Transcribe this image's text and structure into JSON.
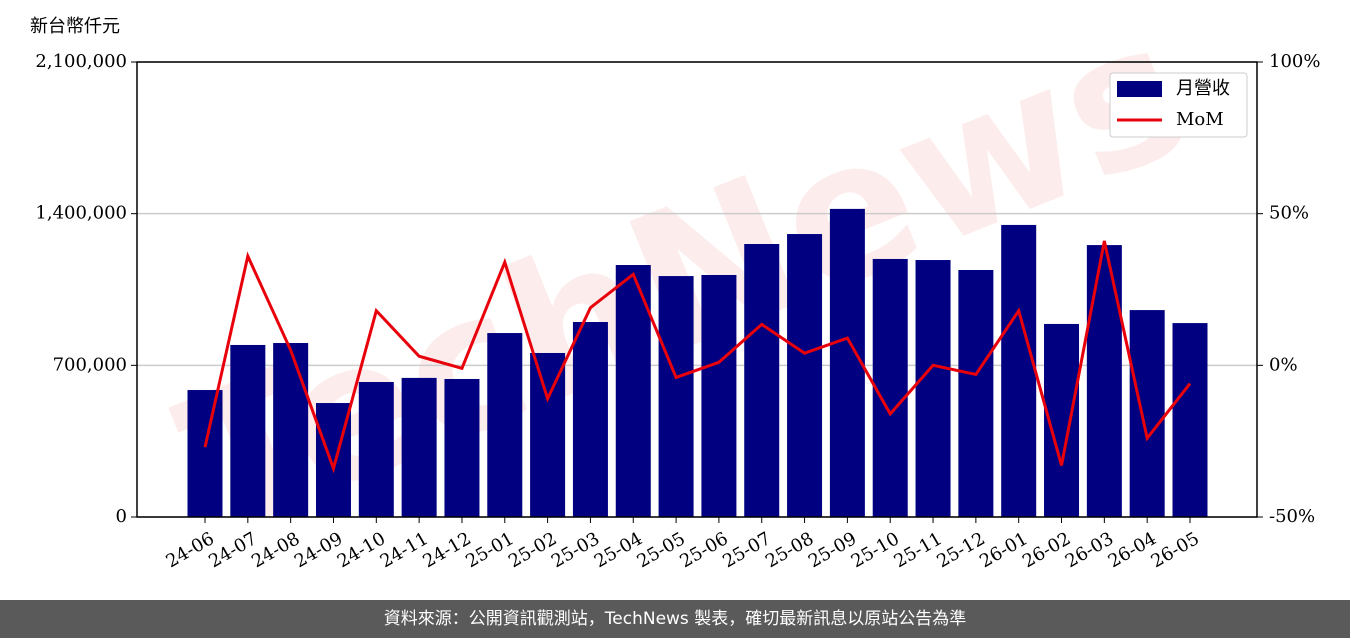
{
  "chart_data": {
    "type": "bar-line",
    "y_label": "新台幣仟元",
    "watermark": "TechNews",
    "categories": [
      "24-06",
      "24-07",
      "24-08",
      "24-09",
      "24-10",
      "24-11",
      "24-12",
      "25-01",
      "25-02",
      "25-03",
      "25-04",
      "25-05",
      "25-06",
      "25-07",
      "25-08",
      "25-09",
      "25-10",
      "25-11",
      "25-12",
      "26-01",
      "26-02",
      "26-03",
      "26-04",
      "26-05"
    ],
    "series": [
      {
        "name": "月營收",
        "color": "#000080",
        "values": [
          586000,
          794000,
          803000,
          526000,
          623000,
          642000,
          637000,
          849000,
          757000,
          900000,
          1163000,
          1112000,
          1117000,
          1260000,
          1306000,
          1422000,
          1191000,
          1186000,
          1140000,
          1348000,
          891000,
          1255000,
          955000,
          895000
        ]
      },
      {
        "name": "MoM",
        "color": "#e8000b",
        "axis": "y2",
        "values": [
          -27,
          36,
          5,
          -34,
          18,
          3,
          -1,
          34,
          -11,
          19,
          30,
          -4,
          1,
          13.5,
          4,
          9,
          -16,
          0,
          -3,
          18,
          -33,
          41,
          -24,
          -6
        ]
      }
    ],
    "ylim": [
      0,
      2100000
    ],
    "yticks": [
      {
        "value": 0,
        "label": "0"
      },
      {
        "value": 700000,
        "label": "700,000"
      },
      {
        "value": 1400000,
        "label": "1,400,000"
      },
      {
        "value": 2100000,
        "label": "2,100,000"
      }
    ],
    "y2lim": [
      -50,
      100
    ],
    "y2ticks": [
      {
        "value": -50,
        "label": "-50%"
      },
      {
        "value": 0,
        "label": "0%"
      },
      {
        "value": 50,
        "label": "50%"
      },
      {
        "value": 100,
        "label": "100%"
      }
    ],
    "grid": true,
    "legend": "upper right",
    "footer": "資料來源：公開資訊觀測站，TechNews 製表，確切最新訊息以原站公告為準"
  }
}
